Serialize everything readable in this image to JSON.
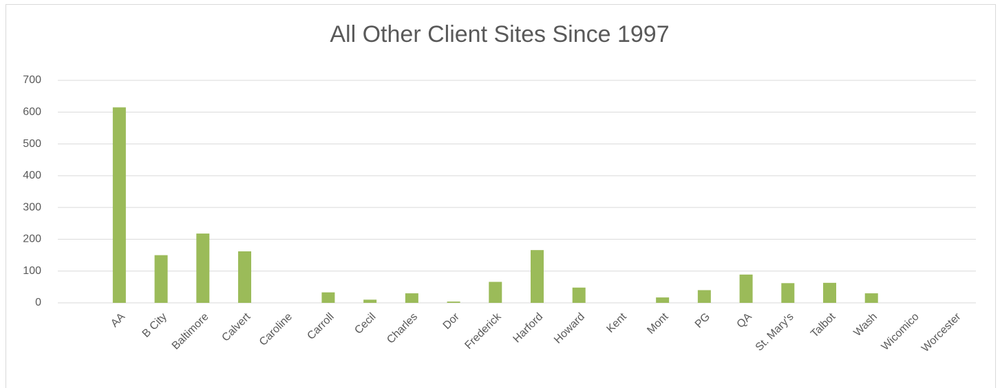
{
  "chart_data": {
    "type": "bar",
    "title": "All Other Client Sites Since 1997",
    "categories": [
      "AA",
      "B City",
      "Baltimore",
      "Calvert",
      "Caroline",
      "Carroll",
      "Cecil",
      "Charles",
      "Dor",
      "Frederick",
      "Harford",
      "Howard",
      "Kent",
      "Mont",
      "PG",
      "QA",
      "St. Mary's",
      "Talbot",
      "Wash",
      "Wicomico",
      "Worcester"
    ],
    "values": [
      615,
      150,
      218,
      162,
      0,
      33,
      10,
      30,
      4,
      66,
      166,
      48,
      0,
      17,
      40,
      89,
      62,
      63,
      30,
      0,
      0
    ],
    "color": "#9bbb59",
    "ylim": [
      0,
      700
    ],
    "yticks": [
      0,
      100,
      200,
      300,
      400,
      500,
      600,
      700
    ],
    "grid": true
  }
}
